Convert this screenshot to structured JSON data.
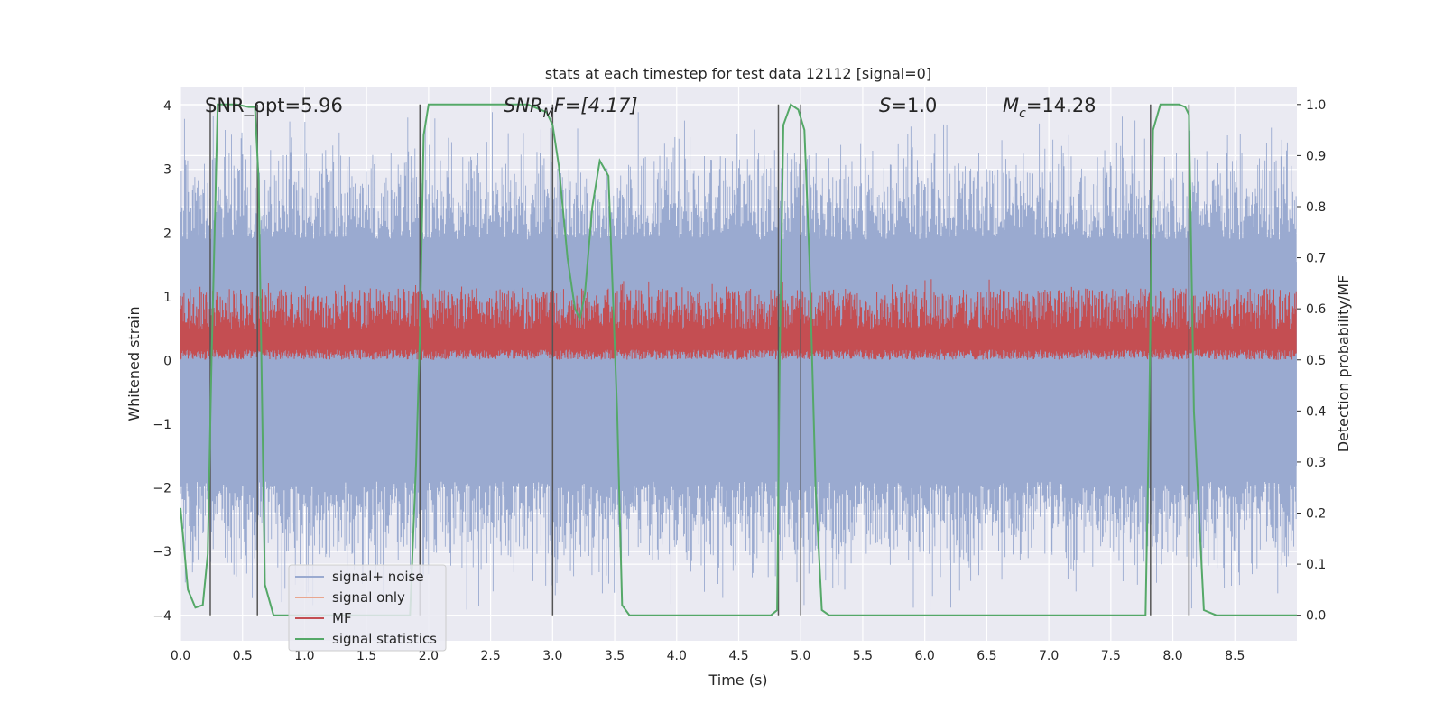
{
  "colors": {
    "background": "#EAEAF2",
    "grid": "#FFFFFF",
    "noise": "#9AAAD0",
    "signal_only": "#E9A68F",
    "mf": "#C44E52",
    "stats": "#55A868",
    "vlines": "#555555",
    "text": "#262626"
  },
  "chart_data": {
    "type": "line",
    "title": "stats at each timestep for test data 12112 [signal=0]",
    "xlabel": "Time (s)",
    "ylabel": "Whitened strain",
    "ylabel_right": "Detection probability/MF",
    "xlim": [
      0,
      9.0
    ],
    "ylim": [
      -4.4,
      4.3
    ],
    "ylim_right": [
      -0.05,
      1.035
    ],
    "xticks": [
      "0.0",
      "0.5",
      "1.0",
      "1.5",
      "2.0",
      "2.5",
      "3.0",
      "3.5",
      "4.0",
      "4.5",
      "5.0",
      "5.5",
      "6.0",
      "6.5",
      "7.0",
      "7.5",
      "8.0",
      "8.5"
    ],
    "yticks_left": [
      "4",
      "3",
      "2",
      "1",
      "0",
      "−1",
      "−2",
      "−3",
      "−4"
    ],
    "yticks_right": [
      "1.0",
      "0.9",
      "0.8",
      "0.7",
      "0.6",
      "0.5",
      "0.4",
      "0.3",
      "0.2",
      "0.1",
      "0.0"
    ],
    "grid": true,
    "legend_position": "lower-left",
    "legend": [
      "signal+ noise",
      "signal only",
      "MF",
      "signal statistics"
    ],
    "annotations": {
      "snr_opt": "SNR_opt=5.96",
      "snr_mf_base": "SNR",
      "snr_mf_sub": "M",
      "snr_mf_rest": "F=[4.17]",
      "s_var": "S",
      "s_val": "=1.0",
      "mc_var": "M",
      "mc_sub": "c",
      "mc_val": "=14.28"
    },
    "noise_envelope": {
      "description": "whitened strain noise band, approx range",
      "upper": 3.9,
      "lower": -4.0
    },
    "mf_band": {
      "units": "right axis",
      "low": 0.5,
      "high": 0.62
    },
    "event_lines_x": [
      0.24,
      0.62,
      1.93,
      3.0,
      4.82,
      5.0,
      7.82,
      8.13
    ],
    "series": [
      {
        "name": "signal statistics",
        "axis": "right",
        "x": [
          0.0,
          0.06,
          0.12,
          0.18,
          0.22,
          0.25,
          0.3,
          0.36,
          0.45,
          0.55,
          0.6,
          0.63,
          0.68,
          0.75,
          0.85,
          1.2,
          1.6,
          1.85,
          1.9,
          1.93,
          1.96,
          2.0,
          2.1,
          2.5,
          2.8,
          2.95,
          3.0,
          3.05,
          3.12,
          3.18,
          3.22,
          3.26,
          3.32,
          3.38,
          3.45,
          3.52,
          3.56,
          3.62,
          3.8,
          4.4,
          4.76,
          4.81,
          4.83,
          4.86,
          4.92,
          4.98,
          5.03,
          5.07,
          5.12,
          5.17,
          5.23,
          5.6,
          6.5,
          7.2,
          7.78,
          7.81,
          7.84,
          7.9,
          8.05,
          8.1,
          8.13,
          8.17,
          8.25,
          8.35,
          8.6,
          9.0
        ],
        "values": [
          0.21,
          0.05,
          0.015,
          0.02,
          0.12,
          0.5,
          1.0,
          1.0,
          1.0,
          0.995,
          0.995,
          0.85,
          0.06,
          0.0,
          0.0,
          0.0,
          0.0,
          0.0,
          0.3,
          0.55,
          0.94,
          1.0,
          1.0,
          1.0,
          1.0,
          0.985,
          0.96,
          0.88,
          0.7,
          0.6,
          0.58,
          0.63,
          0.8,
          0.89,
          0.86,
          0.4,
          0.02,
          0.0,
          0.0,
          0.0,
          0.0,
          0.01,
          0.5,
          0.96,
          1.0,
          0.99,
          0.95,
          0.7,
          0.25,
          0.01,
          0.0,
          0.0,
          0.0,
          0.0,
          0.0,
          0.4,
          0.95,
          1.0,
          1.0,
          0.995,
          0.98,
          0.4,
          0.01,
          0.0,
          0.0,
          0.0
        ]
      }
    ]
  }
}
